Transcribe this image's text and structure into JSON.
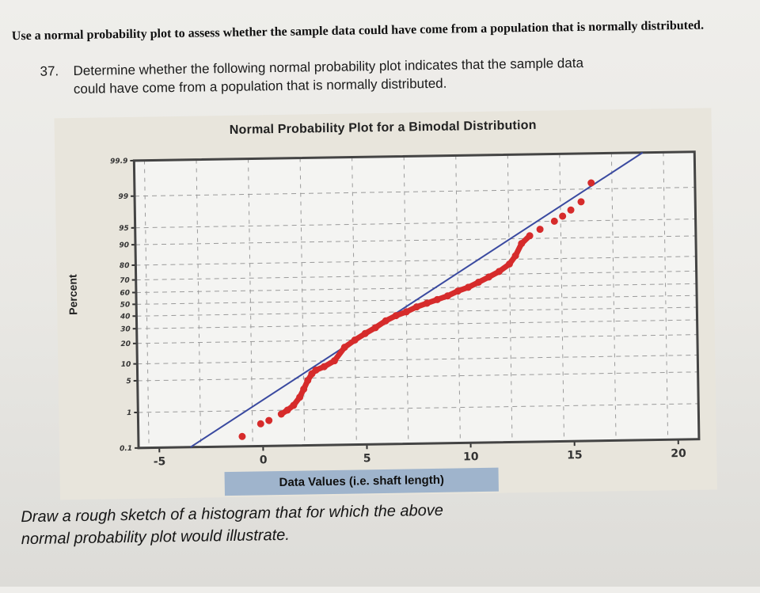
{
  "intro": {
    "text": "Use a normal probability plot to assess whether the sample data could have come from a population that is normally distributed."
  },
  "question": {
    "number": "37.",
    "line1": "Determine whether the following normal probability plot indicates that the sample data",
    "line2": "could have come from a population that is normally distributed."
  },
  "footer": {
    "line1": "Draw a rough sketch of a histogram that for which the above",
    "line2": "normal probability plot would illustrate."
  },
  "chart_data": {
    "type": "scatter",
    "title": "Normal Probability Plot for a Bimodal Distribution",
    "xlabel": "Data Values (i.e. shaft length)",
    "ylabel": "Percent",
    "x_ticks": [
      -5,
      0,
      5,
      10,
      15,
      20
    ],
    "y_ticks": [
      0.1,
      1,
      5,
      10,
      20,
      30,
      40,
      50,
      60,
      70,
      80,
      90,
      95,
      99,
      99.9
    ],
    "xlim": [
      -6,
      21
    ],
    "ylim": [
      0.1,
      99.9
    ],
    "grid": true,
    "legend": "none",
    "colors": {
      "points": "#d62b2b",
      "fit_line": "#3a4aa0",
      "grid": "#9a9a9a",
      "plot_bg": "#f4f4f2"
    },
    "series": [
      {
        "name": "sample data",
        "kind": "points",
        "x": [
          -1.0,
          -0.1,
          0.3,
          0.9,
          1.2,
          1.5,
          1.8,
          2.0,
          2.2,
          2.4,
          2.6,
          3.0,
          3.5,
          4.0,
          4.5,
          5.0,
          5.5,
          6.0,
          6.5,
          7.0,
          7.5,
          8.0,
          8.5,
          9.0,
          9.5,
          10.0,
          10.5,
          11.0,
          11.5,
          12.0,
          12.3,
          12.6,
          13.0,
          13.5,
          14.2,
          14.6,
          15.0,
          15.5,
          16.0
        ],
        "y": [
          0.2,
          0.45,
          0.55,
          0.8,
          1.0,
          1.3,
          2.0,
          3.0,
          4.5,
          6.0,
          7.0,
          8.0,
          10.0,
          16.0,
          20.0,
          24.0,
          28.0,
          33.0,
          37.0,
          40.0,
          44.0,
          47.0,
          50.0,
          53.0,
          57.0,
          60.0,
          64.0,
          68.0,
          72.0,
          77.0,
          82.0,
          88.0,
          91.0,
          93.0,
          95.0,
          96.0,
          97.0,
          98.0,
          99.3
        ]
      },
      {
        "name": "normal fit line",
        "kind": "line",
        "x": [
          -3.5,
          18.5
        ],
        "y": [
          0.1,
          99.9
        ]
      }
    ]
  }
}
